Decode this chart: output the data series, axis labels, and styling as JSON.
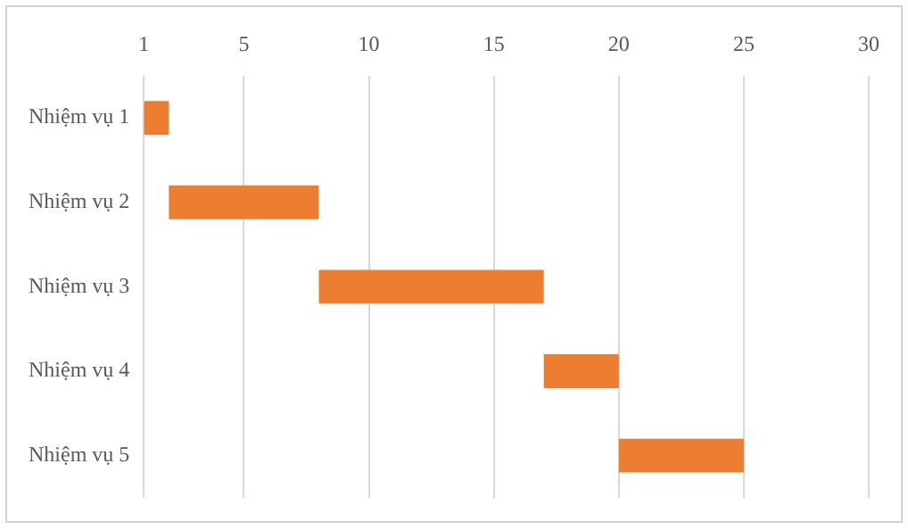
{
  "chart_data": {
    "type": "bar",
    "orientation": "horizontal",
    "categories": [
      "Nhiệm vụ 1",
      "Nhiệm vụ 2",
      "Nhiệm vụ 3",
      "Nhiệm vụ 4",
      "Nhiệm vụ 5"
    ],
    "values": [
      1,
      6,
      9,
      3,
      5
    ],
    "base": [
      1,
      2,
      8,
      17,
      20
    ],
    "color": "#ed7d31",
    "xlim": [
      1,
      30
    ],
    "xticks": [
      1,
      5,
      10,
      15,
      20,
      25,
      30
    ],
    "grid": "x",
    "legend": false
  }
}
